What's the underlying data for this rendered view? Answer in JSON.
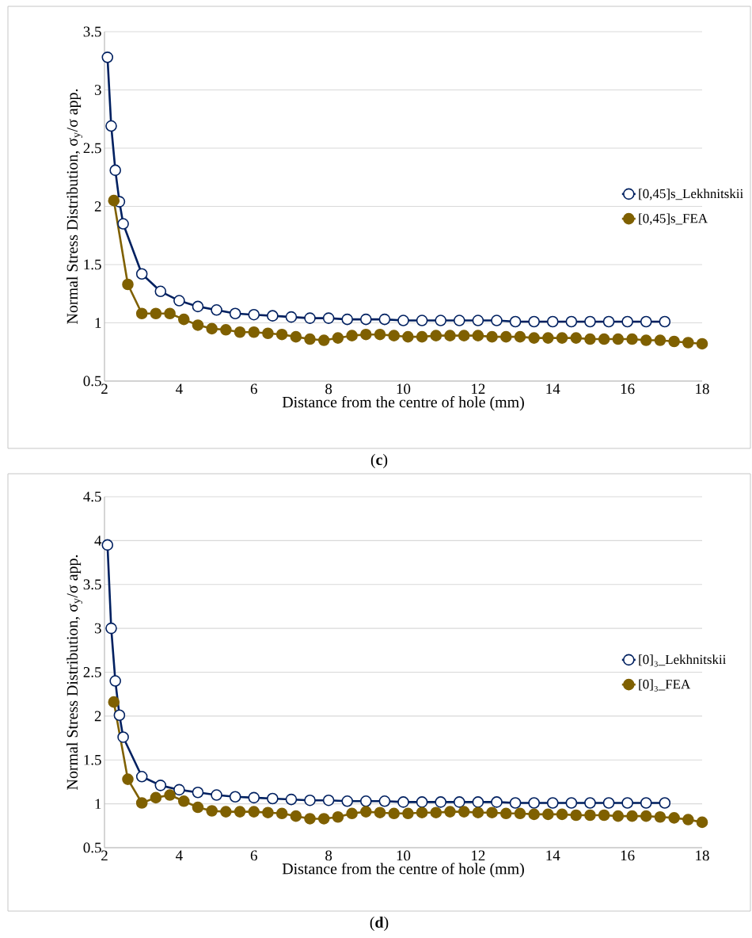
{
  "chart_data": [
    {
      "type": "line",
      "xlabel": "Distance from the centre of hole (mm)",
      "ylabel": "Normal Stress Distribution, σ$_{y}$/σ app.",
      "annotations": [
        "(**c**)"
      ],
      "xlim": [
        2,
        18
      ],
      "ylim": [
        0.5,
        3.5
      ],
      "xticks": [
        2,
        4,
        6,
        8,
        10,
        12,
        14,
        16,
        18
      ],
      "yticks": [
        0.5,
        1,
        1.5,
        2,
        2.5,
        3,
        3.5
      ],
      "grid": "y",
      "legend": "right",
      "marker": "circle",
      "series": [
        {
          "name": "[0,45]s_Lekhnitskii",
          "color": "#002060",
          "x": [
            2.08,
            2.18,
            2.29,
            2.4,
            2.5,
            3,
            3.5,
            4,
            4.5,
            5,
            5.5,
            6,
            6.5,
            7,
            7.5,
            8,
            8.5,
            9,
            9.5,
            10,
            10.5,
            11,
            11.5,
            12,
            12.5,
            13,
            13.5,
            14,
            14.5,
            15,
            15.5,
            16,
            16.5,
            17
          ],
          "values": [
            3.28,
            2.69,
            2.31,
            2.04,
            1.85,
            1.42,
            1.27,
            1.19,
            1.14,
            1.11,
            1.08,
            1.07,
            1.06,
            1.05,
            1.04,
            1.04,
            1.03,
            1.03,
            1.03,
            1.02,
            1.02,
            1.02,
            1.02,
            1.02,
            1.02,
            1.01,
            1.01,
            1.01,
            1.01,
            1.01,
            1.01,
            1.01,
            1.01,
            1.01
          ]
        },
        {
          "name": "[0,45]s_FEA",
          "color": "#7f6000",
          "x": [
            2.25,
            2.625,
            3,
            3.375,
            3.75,
            4.125,
            4.5,
            4.875,
            5.25,
            5.625,
            6,
            6.375,
            6.75,
            7.125,
            7.5,
            7.875,
            8.25,
            8.625,
            9,
            9.375,
            9.75,
            10.125,
            10.5,
            10.875,
            11.25,
            11.625,
            12,
            12.375,
            12.75,
            13.125,
            13.5,
            13.875,
            14.25,
            14.625,
            15,
            15.375,
            15.75,
            16.125,
            16.5,
            16.875,
            17.25,
            17.625,
            18
          ],
          "values": [
            2.05,
            1.33,
            1.08,
            1.08,
            1.08,
            1.03,
            0.98,
            0.95,
            0.94,
            0.92,
            0.92,
            0.91,
            0.9,
            0.88,
            0.86,
            0.85,
            0.87,
            0.89,
            0.9,
            0.9,
            0.89,
            0.88,
            0.88,
            0.89,
            0.89,
            0.89,
            0.89,
            0.88,
            0.88,
            0.88,
            0.87,
            0.87,
            0.87,
            0.87,
            0.86,
            0.86,
            0.86,
            0.86,
            0.85,
            0.85,
            0.84,
            0.83,
            0.82
          ]
        }
      ]
    },
    {
      "type": "line",
      "xlabel": "Distance from the centre of hole (mm)",
      "ylabel": "Normal Stress Distribution, σ$_{y}$/σ app.",
      "annotations": [
        "(**d**)"
      ],
      "xlim": [
        2,
        18
      ],
      "ylim": [
        0.5,
        4.5
      ],
      "xticks": [
        2,
        4,
        6,
        8,
        10,
        12,
        14,
        16,
        18
      ],
      "yticks": [
        0.5,
        1,
        1.5,
        2,
        2.5,
        3,
        3.5,
        4,
        4.5
      ],
      "grid": "y",
      "legend": "right",
      "marker": "circle",
      "series": [
        {
          "name": "[0]₃_Lekhnitskii",
          "color": "#002060",
          "x": [
            2.08,
            2.18,
            2.29,
            2.4,
            2.5,
            3,
            3.5,
            4,
            4.5,
            5,
            5.5,
            6,
            6.5,
            7,
            7.5,
            8,
            8.5,
            9,
            9.5,
            10,
            10.5,
            11,
            11.5,
            12,
            12.5,
            13,
            13.5,
            14,
            14.5,
            15,
            15.5,
            16,
            16.5,
            17
          ],
          "values": [
            3.95,
            3.0,
            2.4,
            2.01,
            1.76,
            1.31,
            1.21,
            1.16,
            1.13,
            1.1,
            1.08,
            1.07,
            1.06,
            1.05,
            1.04,
            1.04,
            1.03,
            1.03,
            1.03,
            1.02,
            1.02,
            1.02,
            1.02,
            1.02,
            1.02,
            1.01,
            1.01,
            1.01,
            1.01,
            1.01,
            1.01,
            1.01,
            1.01,
            1.01
          ]
        },
        {
          "name": "[0]₃_FEA",
          "color": "#7f6000",
          "x": [
            2.25,
            2.625,
            3,
            3.375,
            3.75,
            4.125,
            4.5,
            4.875,
            5.25,
            5.625,
            6,
            6.375,
            6.75,
            7.125,
            7.5,
            7.875,
            8.25,
            8.625,
            9,
            9.375,
            9.75,
            10.125,
            10.5,
            10.875,
            11.25,
            11.625,
            12,
            12.375,
            12.75,
            13.125,
            13.5,
            13.875,
            14.25,
            14.625,
            15,
            15.375,
            15.75,
            16.125,
            16.5,
            16.875,
            17.25,
            17.625,
            18
          ],
          "values": [
            2.16,
            1.28,
            1.01,
            1.07,
            1.1,
            1.03,
            0.96,
            0.92,
            0.91,
            0.91,
            0.91,
            0.9,
            0.89,
            0.86,
            0.83,
            0.83,
            0.85,
            0.89,
            0.91,
            0.9,
            0.89,
            0.89,
            0.9,
            0.9,
            0.91,
            0.91,
            0.9,
            0.9,
            0.89,
            0.89,
            0.88,
            0.88,
            0.88,
            0.87,
            0.87,
            0.87,
            0.86,
            0.86,
            0.86,
            0.85,
            0.84,
            0.82,
            0.79
          ]
        }
      ]
    }
  ]
}
